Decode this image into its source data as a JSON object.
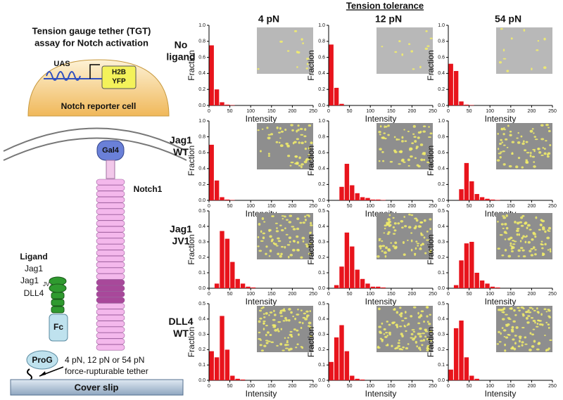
{
  "header": {
    "title": "Tension tolerance",
    "columns": [
      "4 pN",
      "12 pN",
      "54 pN"
    ],
    "rows": [
      [
        "No",
        "ligand"
      ],
      [
        "Jag1",
        "WT"
      ],
      [
        "Jag1",
        "JV1"
      ],
      [
        "DLL4",
        "WT"
      ]
    ]
  },
  "diagram": {
    "title": [
      "Tension gauge tether (TGT)",
      "assay for Notch activation"
    ],
    "uas": "UAS",
    "reporter": [
      "H2B",
      "YFP"
    ],
    "cell": "Notch reporter cell",
    "gal4": "Gal4",
    "notch": "Notch1",
    "ligand": "Ligand",
    "ligands": [
      "Jag1",
      "Jag1",
      "DLL4"
    ],
    "jv1": "JV1",
    "fc": "Fc",
    "prog": "ProG",
    "tether": [
      "4 pN, 12 pN or 54 pN",
      "force-rupturable tether"
    ],
    "slip": "Cover slip"
  },
  "chart_data": [
    {
      "type": "histogram",
      "xlabel": "Intensity",
      "ylabel": "Fraction",
      "color": "#e8141c",
      "bins": [
        0,
        12.5,
        25,
        37.5,
        50,
        62.5,
        75,
        87.5,
        100,
        112.5,
        125,
        137.5,
        150,
        162.5,
        175,
        187.5,
        200,
        212.5,
        225,
        237.5,
        250
      ],
      "values": [
        0.75,
        0.2,
        0.04,
        0.01,
        0.005,
        0,
        0,
        0,
        0,
        0,
        0,
        0,
        0,
        0,
        0,
        0,
        0,
        0,
        0,
        0
      ],
      "xlim": [
        0,
        250
      ],
      "xticks": [
        0,
        50,
        100,
        150,
        200,
        250
      ],
      "ylim": [
        0,
        1
      ],
      "yticks": [
        {
          "value": 0,
          "label": "0.0"
        },
        0.2,
        0.4,
        0.6,
        0.8,
        {
          "value": 1,
          "label": "1.0"
        }
      ]
    },
    {
      "type": "histogram",
      "xlabel": "Intensity",
      "ylabel": "Fraction",
      "color": "#e8141c",
      "bins": [
        0,
        12.5,
        25,
        37.5,
        50,
        62.5,
        75,
        87.5,
        100,
        112.5,
        125,
        137.5,
        150,
        162.5,
        175,
        187.5,
        200,
        212.5,
        225,
        237.5,
        250
      ],
      "values": [
        0.76,
        0.22,
        0.02,
        0,
        0,
        0,
        0,
        0,
        0,
        0,
        0,
        0,
        0,
        0,
        0,
        0,
        0,
        0,
        0,
        0
      ],
      "xlim": [
        0,
        250
      ],
      "xticks": [
        0,
        50,
        100,
        150,
        200,
        250
      ],
      "ylim": [
        0,
        1
      ],
      "yticks": [
        {
          "value": 0,
          "label": "0.0"
        },
        0.2,
        0.4,
        0.6,
        0.8,
        {
          "value": 1,
          "label": "1.0"
        }
      ]
    },
    {
      "type": "histogram",
      "xlabel": "Intensity",
      "ylabel": "Fraction",
      "color": "#e8141c",
      "bins": [
        0,
        12.5,
        25,
        37.5,
        50,
        62.5,
        75,
        87.5,
        100,
        112.5,
        125,
        137.5,
        150,
        162.5,
        175,
        187.5,
        200,
        212.5,
        225,
        237.5,
        250
      ],
      "values": [
        0.52,
        0.43,
        0.05,
        0.01,
        0.005,
        0,
        0,
        0,
        0,
        0,
        0,
        0,
        0,
        0,
        0,
        0,
        0,
        0,
        0,
        0
      ],
      "xlim": [
        0,
        250
      ],
      "xticks": [
        0,
        50,
        100,
        150,
        200,
        250
      ],
      "ylim": [
        0,
        1
      ],
      "yticks": [
        {
          "value": 0,
          "label": "0.0"
        },
        0.2,
        0.4,
        0.6,
        0.8,
        {
          "value": 1,
          "label": "1.0"
        }
      ]
    },
    {
      "type": "histogram",
      "xlabel": "Intensity",
      "ylabel": "Fraction",
      "color": "#e8141c",
      "bins": [
        0,
        12.5,
        25,
        37.5,
        50,
        62.5,
        75,
        87.5,
        100,
        112.5,
        125,
        137.5,
        150,
        162.5,
        175,
        187.5,
        200,
        212.5,
        225,
        237.5,
        250
      ],
      "values": [
        0.7,
        0.25,
        0.04,
        0.01,
        0.005,
        0,
        0,
        0,
        0,
        0,
        0,
        0,
        0,
        0,
        0,
        0,
        0,
        0,
        0,
        0
      ],
      "xlim": [
        0,
        250
      ],
      "xticks": [
        0,
        50,
        100,
        150,
        200,
        250
      ],
      "ylim": [
        0,
        1
      ],
      "yticks": [
        {
          "value": 0,
          "label": "0.0"
        },
        0.2,
        0.4,
        0.6,
        0.8,
        {
          "value": 1,
          "label": "1.0"
        }
      ]
    },
    {
      "type": "histogram",
      "xlabel": "Intensity",
      "ylabel": "Fraction",
      "color": "#e8141c",
      "bins": [
        0,
        12.5,
        25,
        37.5,
        50,
        62.5,
        75,
        87.5,
        100,
        112.5,
        125,
        137.5,
        150,
        162.5,
        175,
        187.5,
        200,
        212.5,
        225,
        237.5,
        250
      ],
      "values": [
        0,
        0,
        0.17,
        0.46,
        0.19,
        0.09,
        0.04,
        0.03,
        0.01,
        0.01,
        0.005,
        0,
        0,
        0,
        0,
        0,
        0,
        0,
        0,
        0
      ],
      "xlim": [
        0,
        250
      ],
      "xticks": [
        0,
        50,
        100,
        150,
        200,
        250
      ],
      "ylim": [
        0,
        1
      ],
      "yticks": [
        {
          "value": 0,
          "label": "0.0"
        },
        0.2,
        0.4,
        0.6,
        0.8,
        {
          "value": 1,
          "label": "1.0"
        }
      ]
    },
    {
      "type": "histogram",
      "xlabel": "Intensity",
      "ylabel": "Fraction",
      "color": "#e8141c",
      "bins": [
        0,
        12.5,
        25,
        37.5,
        50,
        62.5,
        75,
        87.5,
        100,
        112.5,
        125,
        137.5,
        150,
        162.5,
        175,
        187.5,
        200,
        212.5,
        225,
        237.5,
        250
      ],
      "values": [
        0,
        0,
        0.14,
        0.47,
        0.24,
        0.08,
        0.04,
        0.02,
        0.01,
        0.005,
        0,
        0,
        0,
        0,
        0,
        0,
        0,
        0,
        0,
        0
      ],
      "xlim": [
        0,
        250
      ],
      "xticks": [
        0,
        50,
        100,
        150,
        200,
        250
      ],
      "ylim": [
        0,
        1
      ],
      "yticks": [
        {
          "value": 0,
          "label": "0.0"
        },
        0.2,
        0.4,
        0.6,
        0.8,
        {
          "value": 1,
          "label": "1.0"
        }
      ]
    },
    {
      "type": "histogram",
      "xlabel": "Intensity",
      "ylabel": "Fraction",
      "color": "#e8141c",
      "bins": [
        0,
        12.5,
        25,
        37.5,
        50,
        62.5,
        75,
        87.5,
        100,
        112.5,
        125,
        137.5,
        150,
        162.5,
        175,
        187.5,
        200,
        212.5,
        225,
        237.5,
        250
      ],
      "values": [
        0,
        0.03,
        0.37,
        0.32,
        0.17,
        0.06,
        0.03,
        0.01,
        0.005,
        0,
        0,
        0,
        0,
        0,
        0,
        0,
        0,
        0,
        0,
        0
      ],
      "xlim": [
        0,
        250
      ],
      "xticks": [
        0,
        50,
        100,
        150,
        200,
        250
      ],
      "ylim": [
        0,
        0.5
      ],
      "yticks": [
        {
          "value": 0,
          "label": "0.0"
        },
        0.1,
        0.2,
        0.3,
        0.4,
        0.5
      ]
    },
    {
      "type": "histogram",
      "xlabel": "Intensity",
      "ylabel": "Fraction",
      "color": "#e8141c",
      "bins": [
        0,
        12.5,
        25,
        37.5,
        50,
        62.5,
        75,
        87.5,
        100,
        112.5,
        125,
        137.5,
        150,
        162.5,
        175,
        187.5,
        200,
        212.5,
        225,
        237.5,
        250
      ],
      "values": [
        0,
        0.02,
        0.14,
        0.36,
        0.27,
        0.12,
        0.06,
        0.03,
        0.01,
        0.01,
        0.005,
        0,
        0,
        0,
        0,
        0,
        0,
        0,
        0,
        0
      ],
      "xlim": [
        0,
        250
      ],
      "xticks": [
        0,
        50,
        100,
        150,
        200,
        250
      ],
      "ylim": [
        0,
        0.5
      ],
      "yticks": [
        {
          "value": 0,
          "label": "0.0"
        },
        0.1,
        0.2,
        0.3,
        0.4,
        0.5
      ]
    },
    {
      "type": "histogram",
      "xlabel": "Intensity",
      "ylabel": "Fraction",
      "color": "#e8141c",
      "bins": [
        0,
        12.5,
        25,
        37.5,
        50,
        62.5,
        75,
        87.5,
        100,
        112.5,
        125,
        137.5,
        150,
        162.5,
        175,
        187.5,
        200,
        212.5,
        225,
        237.5,
        250
      ],
      "values": [
        0,
        0.02,
        0.18,
        0.29,
        0.3,
        0.1,
        0.05,
        0.03,
        0.01,
        0.005,
        0,
        0,
        0,
        0,
        0,
        0,
        0,
        0,
        0,
        0
      ],
      "xlim": [
        0,
        250
      ],
      "xticks": [
        0,
        50,
        100,
        150,
        200,
        250
      ],
      "ylim": [
        0,
        0.5
      ],
      "yticks": [
        {
          "value": 0,
          "label": "0.0"
        },
        0.1,
        0.2,
        0.3,
        0.4,
        0.5
      ]
    },
    {
      "type": "histogram",
      "xlabel": "Intensity",
      "ylabel": "Fraction",
      "color": "#e8141c",
      "bins": [
        0,
        12.5,
        25,
        37.5,
        50,
        62.5,
        75,
        87.5,
        100,
        112.5,
        125,
        137.5,
        150,
        162.5,
        175,
        187.5,
        200,
        212.5,
        225,
        237.5,
        250
      ],
      "values": [
        0.19,
        0.15,
        0.42,
        0.2,
        0.03,
        0.01,
        0.005,
        0,
        0,
        0,
        0,
        0,
        0,
        0,
        0,
        0,
        0,
        0,
        0,
        0
      ],
      "xlim": [
        0,
        250
      ],
      "xticks": [
        0,
        50,
        100,
        150,
        200,
        250
      ],
      "ylim": [
        0,
        0.5
      ],
      "yticks": [
        {
          "value": 0,
          "label": "0.0"
        },
        0.1,
        0.2,
        0.3,
        0.4,
        0.5
      ]
    },
    {
      "type": "histogram",
      "xlabel": "Intensity",
      "ylabel": "Fraction",
      "color": "#e8141c",
      "bins": [
        0,
        12.5,
        25,
        37.5,
        50,
        62.5,
        75,
        87.5,
        100,
        112.5,
        125,
        137.5,
        150,
        162.5,
        175,
        187.5,
        200,
        212.5,
        225,
        237.5,
        250
      ],
      "values": [
        0.12,
        0.28,
        0.36,
        0.19,
        0.03,
        0.01,
        0.005,
        0,
        0,
        0,
        0,
        0,
        0,
        0,
        0,
        0,
        0,
        0,
        0,
        0
      ],
      "xlim": [
        0,
        250
      ],
      "xticks": [
        0,
        50,
        100,
        150,
        200,
        250
      ],
      "ylim": [
        0,
        0.5
      ],
      "yticks": [
        {
          "value": 0,
          "label": "0.0"
        },
        0.1,
        0.2,
        0.3,
        0.4,
        0.5
      ]
    },
    {
      "type": "histogram",
      "xlabel": "Intensity",
      "ylabel": "Fraction",
      "color": "#e8141c",
      "bins": [
        0,
        12.5,
        25,
        37.5,
        50,
        62.5,
        75,
        87.5,
        100,
        112.5,
        125,
        137.5,
        150,
        162.5,
        175,
        187.5,
        200,
        212.5,
        225,
        237.5,
        250
      ],
      "values": [
        0.07,
        0.34,
        0.39,
        0.15,
        0.03,
        0.01,
        0,
        0,
        0,
        0,
        0,
        0,
        0,
        0,
        0,
        0,
        0,
        0,
        0,
        0
      ],
      "xlim": [
        0,
        250
      ],
      "xticks": [
        0,
        50,
        100,
        150,
        200,
        250
      ],
      "ylim": [
        0,
        0.5
      ],
      "yticks": [
        {
          "value": 0,
          "label": "0.0"
        },
        0.1,
        0.2,
        0.3,
        0.4,
        0.5
      ]
    }
  ]
}
